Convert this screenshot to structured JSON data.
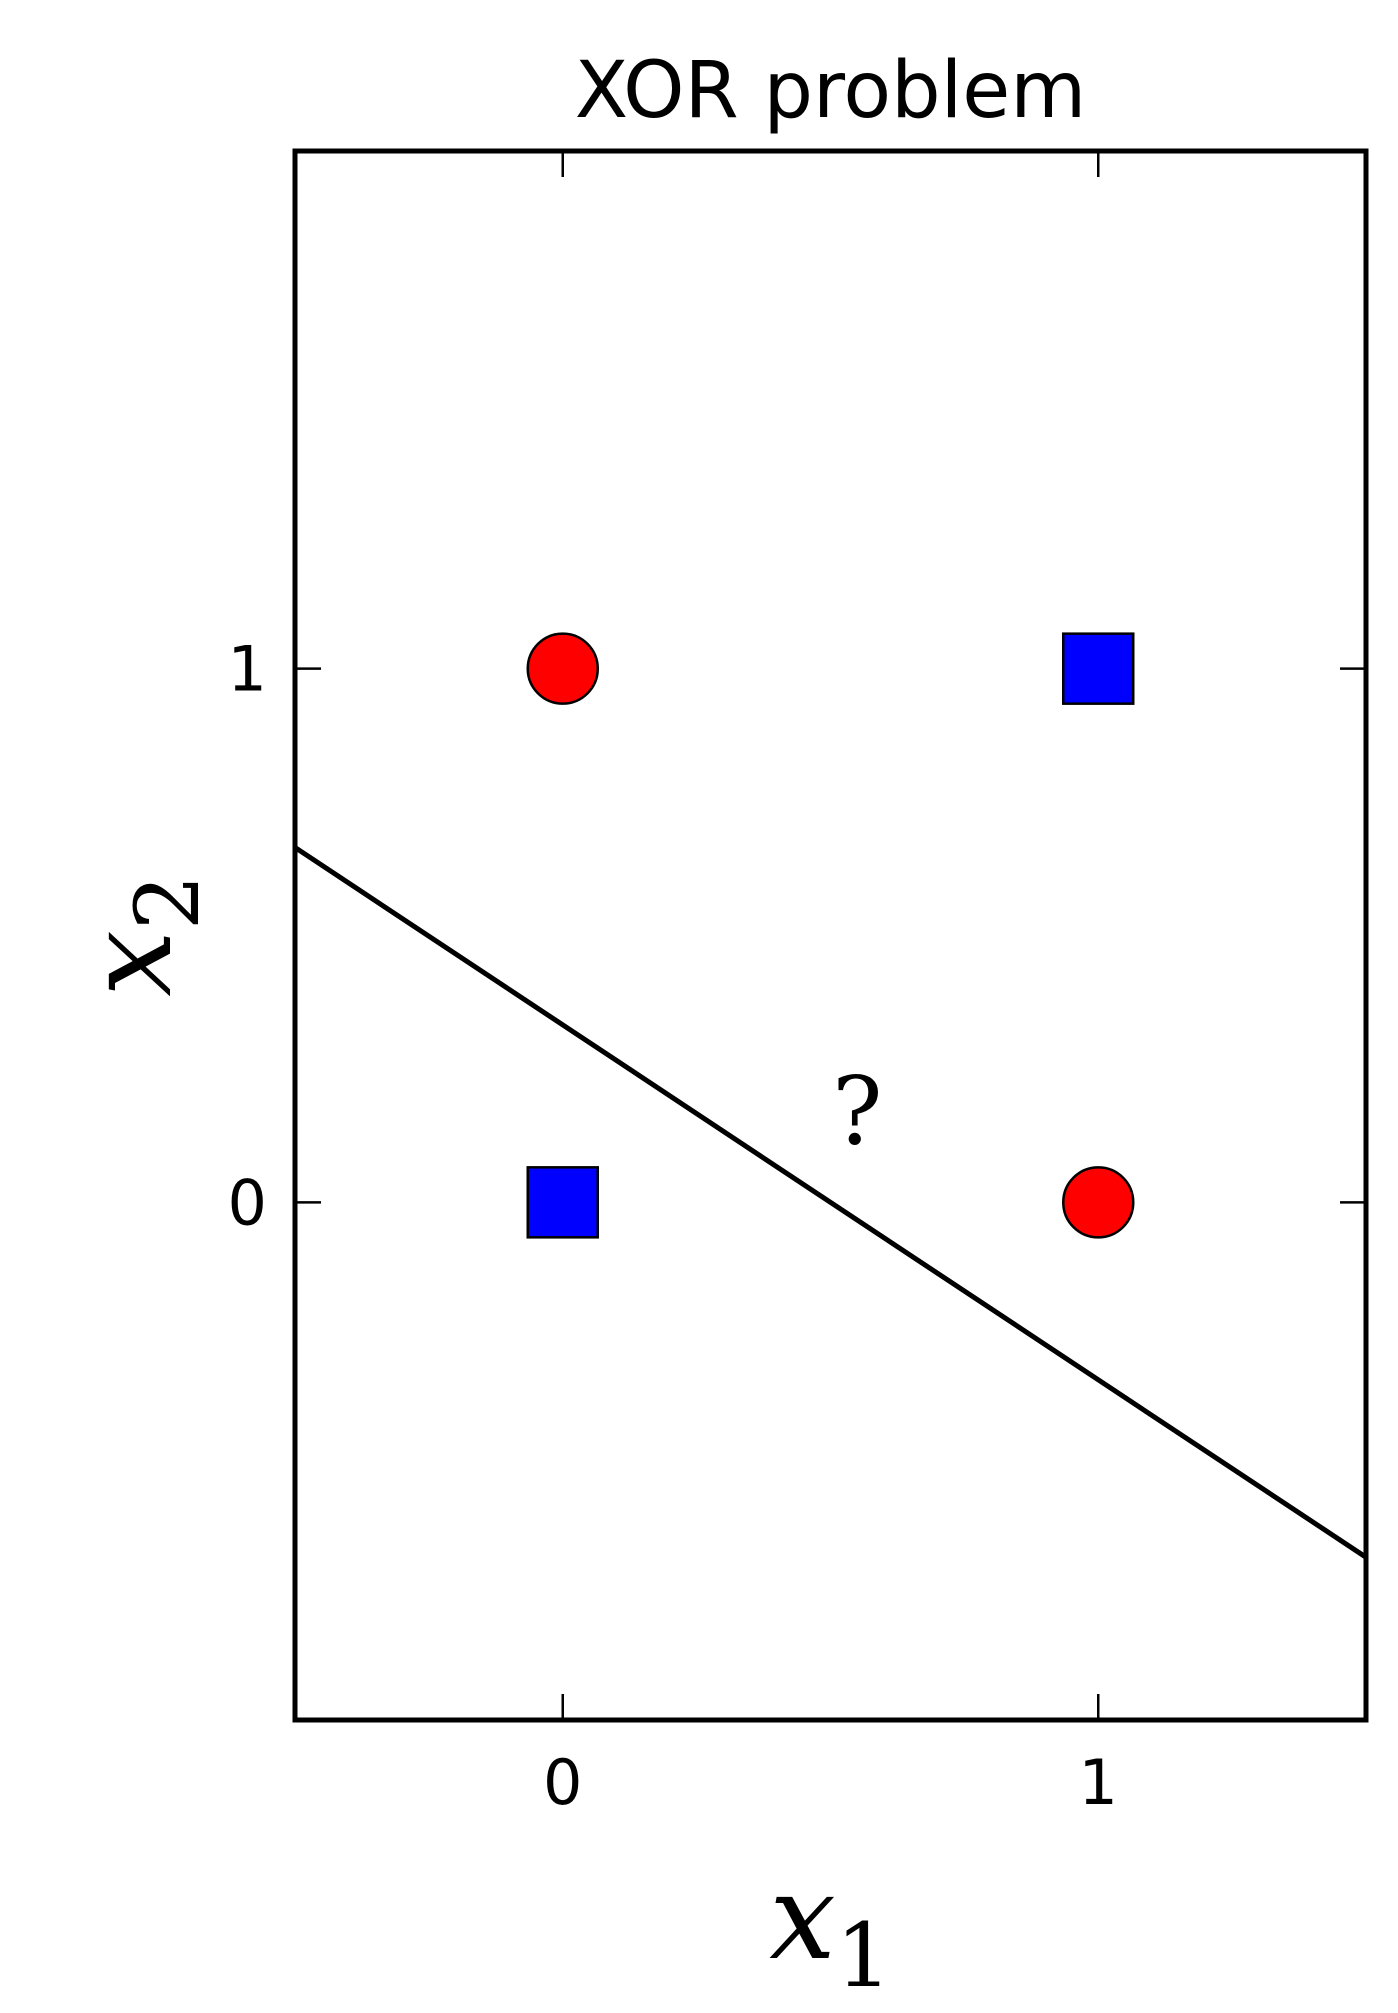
{
  "chart_data": {
    "type": "scatter",
    "title": "XOR problem",
    "xlabel": {
      "base": "x",
      "sub": "1"
    },
    "ylabel": {
      "base": "x",
      "sub": "2"
    },
    "xlim": [
      -0.5,
      1.5
    ],
    "ylim": [
      -0.97,
      1.97
    ],
    "xticks": [
      0,
      1
    ],
    "yticks": [
      0,
      1
    ],
    "xtick_labels": [
      "0",
      "1"
    ],
    "ytick_labels": [
      "0",
      "1"
    ],
    "grid": false,
    "series": [
      {
        "marker": "circle",
        "color": "#ff0000",
        "points": [
          {
            "x": 0,
            "y": 1
          },
          {
            "x": 1,
            "y": 0
          }
        ]
      },
      {
        "marker": "square",
        "color": "#0000ff",
        "points": [
          {
            "x": 0,
            "y": 0
          },
          {
            "x": 1,
            "y": 1
          }
        ]
      }
    ],
    "line": {
      "color": "#000000",
      "points": [
        {
          "x": -0.5,
          "y": 0.665
        },
        {
          "x": 1.5,
          "y": -0.665
        }
      ]
    },
    "annotations": [
      {
        "text": "?",
        "x": 0.55,
        "y": 0.11
      }
    ]
  }
}
